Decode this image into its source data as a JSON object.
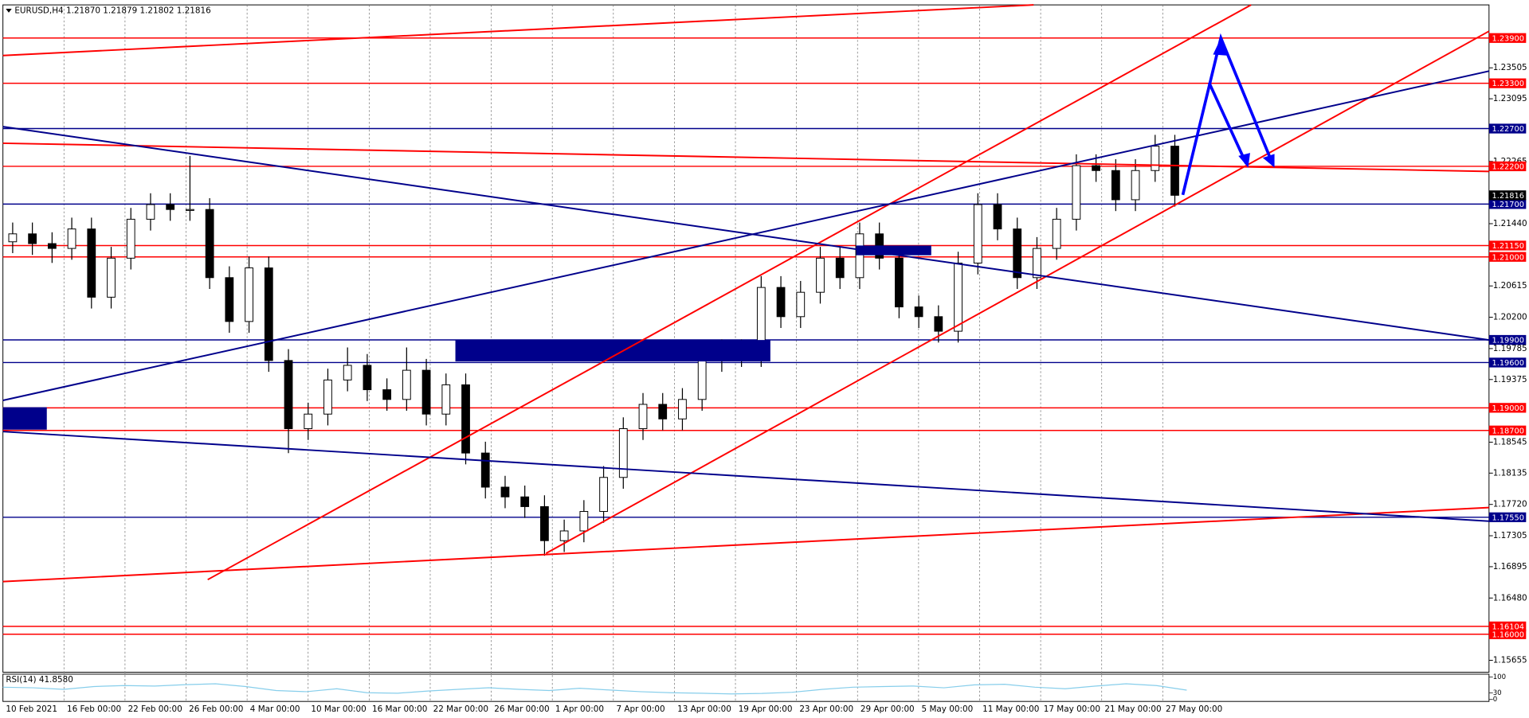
{
  "chart_data": {
    "type": "candlestick",
    "header": "EURUSD,H4  1.21870 1.21879 1.21802 1.21816",
    "open": [
      1.212,
      1.21305,
      1.21176,
      1.21112,
      1.2137,
      1.20466,
      1.20983,
      1.21499,
      1.21693,
      1.21628,
      1.21628,
      1.20725,
      1.20144,
      1.20854,
      1.19627,
      1.18724,
      1.18917,
      1.19369,
      1.19563,
      1.1924,
      1.19111,
      1.19498,
      1.18917,
      1.19305,
      1.18401,
      1.17949,
      1.1782,
      1.17691,
      1.1724,
      1.17369,
      1.17627,
      1.18078,
      1.18724,
      1.19046,
      1.18853,
      1.19111,
      1.19627,
      1.19756,
      1.19692,
      1.20595,
      1.20208,
      1.20531,
      1.20983,
      1.20725,
      1.21305,
      1.20983,
      1.20337,
      1.20208,
      1.20015,
      1.20918,
      1.21693,
      1.2137,
      1.20725,
      1.21112,
      1.21499,
      1.22209,
      1.22144,
      1.21757,
      1.22144,
      1.22467
    ],
    "high": [
      1.21455,
      1.21455,
      1.21326,
      1.2152,
      1.2152,
      1.21133,
      1.21649,
      1.21843,
      1.21843,
      1.22338,
      1.21778,
      1.20875,
      1.21004,
      1.21004,
      1.19777,
      1.19067,
      1.19519,
      1.198,
      1.19713,
      1.1939,
      1.198,
      1.19648,
      1.19455,
      1.19455,
      1.18551,
      1.18099,
      1.1797,
      1.17841,
      1.17519,
      1.17777,
      1.18228,
      1.18874,
      1.19196,
      1.19196,
      1.19261,
      1.19777,
      1.19906,
      1.19906,
      1.20745,
      1.20745,
      1.20681,
      1.21133,
      1.21133,
      1.21455,
      1.21455,
      1.21133,
      1.20487,
      1.20358,
      1.21068,
      1.21843,
      1.21843,
      1.2152,
      1.21262,
      1.21649,
      1.22359,
      1.22359,
      1.22294,
      1.22294,
      1.22617,
      1.22617
    ],
    "low": [
      1.2105,
      1.21026,
      1.2092,
      1.20962,
      1.20316,
      1.20316,
      1.20833,
      1.21349,
      1.21478,
      1.21478,
      1.20575,
      1.19994,
      1.19994,
      1.19477,
      1.184,
      1.18574,
      1.18767,
      1.19219,
      1.1909,
      1.18961,
      1.18961,
      1.18767,
      1.18767,
      1.18251,
      1.17799,
      1.1767,
      1.17541,
      1.1704,
      1.1709,
      1.17219,
      1.17477,
      1.17928,
      1.18574,
      1.18703,
      1.18703,
      1.18961,
      1.19477,
      1.19542,
      1.19542,
      1.20058,
      1.20058,
      1.20381,
      1.20575,
      1.20575,
      1.20833,
      1.20187,
      1.20058,
      1.19865,
      1.19865,
      1.20768,
      1.2122,
      1.20575,
      1.20575,
      1.20962,
      1.21349,
      1.21994,
      1.21607,
      1.21607,
      1.21994,
      1.21666
    ],
    "close": [
      1.21305,
      1.21176,
      1.21112,
      1.2137,
      1.20466,
      1.20983,
      1.21499,
      1.21693,
      1.21628,
      1.21628,
      1.20725,
      1.20144,
      1.20854,
      1.19627,
      1.18724,
      1.18917,
      1.19369,
      1.19563,
      1.1924,
      1.19111,
      1.19498,
      1.18917,
      1.19305,
      1.18401,
      1.17949,
      1.1782,
      1.17691,
      1.1724,
      1.17369,
      1.17627,
      1.18078,
      1.18724,
      1.19046,
      1.18853,
      1.19111,
      1.19627,
      1.19756,
      1.19692,
      1.20595,
      1.20208,
      1.20531,
      1.20983,
      1.20725,
      1.21305,
      1.20983,
      1.20337,
      1.20208,
      1.20015,
      1.20918,
      1.21693,
      1.2137,
      1.20725,
      1.21112,
      1.21499,
      1.22209,
      1.22144,
      1.21757,
      1.22144,
      1.22467,
      1.21816
    ],
    "ylim": [
      1.15497,
      1.24339
    ],
    "yticks": [
      1.23505,
      1.23095,
      1.22265,
      {
        "value": 1.2144,
        "label": "1.21440"
      },
      1.20615,
      {
        "value": 1.202,
        "label": "1.20200"
      },
      1.19785,
      1.19375,
      1.18545,
      1.18135,
      {
        "value": 1.1772,
        "label": "1.17720"
      },
      1.17305,
      1.16895,
      {
        "value": 1.1648,
        "label": "1.16480"
      },
      1.15655
    ],
    "levels": [
      {
        "value": 1.239,
        "label": "1.23900",
        "color": "#ff0000"
      },
      {
        "value": 1.233,
        "label": "1.23300",
        "color": "#ff0000"
      },
      {
        "value": 1.227,
        "label": "1.22700",
        "color": "#00008b"
      },
      {
        "value": 1.222,
        "label": "1.22200",
        "color": "#ff0000"
      },
      {
        "value": 1.217,
        "label": "1.21700",
        "color": "#00008b"
      },
      {
        "value": 1.2115,
        "label": "1.21150",
        "color": "#ff0000"
      },
      {
        "value": 1.21,
        "label": "1.21000",
        "color": "#ff0000"
      },
      {
        "value": 1.199,
        "label": "1.19900",
        "color": "#00008b"
      },
      {
        "value": 1.196,
        "label": "1.19600",
        "color": "#00008b"
      },
      {
        "value": 1.19,
        "label": "1.19000",
        "color": "#ff0000"
      },
      {
        "value": 1.187,
        "label": "1.18700",
        "color": "#ff0000"
      },
      {
        "value": 1.1755,
        "label": "1.17550",
        "color": "#00008b"
      },
      {
        "value": 1.16104,
        "label": "1.16104",
        "color": "#ff0000"
      },
      {
        "value": 1.16,
        "label": "1.16000",
        "color": "#ff0000"
      }
    ],
    "last_price": 1.21816,
    "time_labels": [
      "10 Feb 2021",
      "16 Feb 00:00",
      "22 Feb 00:00",
      "26 Feb 00:00",
      "4 Mar 00:00",
      "10 Mar 00:00",
      "16 Mar 00:00",
      "22 Mar 00:00",
      "26 Mar 00:00",
      "1 Apr 00:00",
      "7 Apr 00:00",
      "13 Apr 00:00",
      "19 Apr 00:00",
      "23 Apr 00:00",
      "29 Apr 00:00",
      "5 May 00:00",
      "11 May 00:00",
      "17 May 00:00",
      "21 May 00:00",
      "27 May 00:00"
    ],
    "rsi": {
      "label": "RSI(14) 41.8580",
      "color": "#87ceeb",
      "values": [
        55,
        52,
        45,
        58,
        62,
        60,
        66,
        70,
        58,
        40,
        35,
        48,
        30,
        28,
        38,
        45,
        52,
        45,
        40,
        50,
        42,
        35,
        30,
        28,
        25,
        27,
        32,
        45,
        55,
        58,
        60,
        52,
        65,
        68,
        55,
        48,
        60,
        70,
        62,
        41.858
      ],
      "ylim": [
        0,
        100
      ],
      "yticks": [
        100,
        30,
        0
      ]
    }
  }
}
